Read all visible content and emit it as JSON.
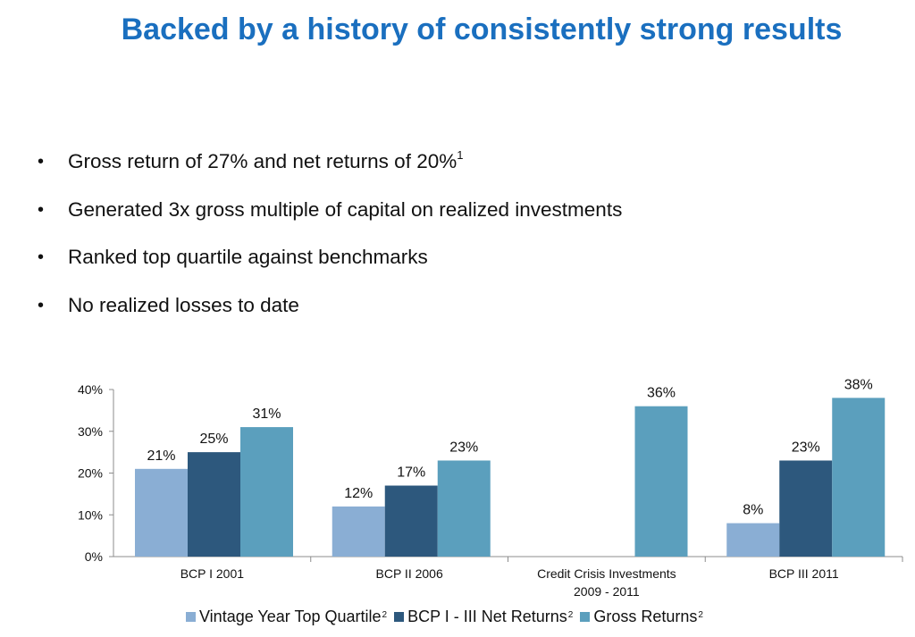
{
  "title": "Backed by a history of consistently strong results",
  "bullets": [
    {
      "text": "Gross return of 27% and net returns of 20%",
      "sup": "1"
    },
    {
      "text": "Generated 3x gross multiple of capital on realized investments",
      "sup": ""
    },
    {
      "text": "Ranked top quartile against benchmarks",
      "sup": ""
    },
    {
      "text": "No realized losses to date",
      "sup": ""
    }
  ],
  "bullet_symbol": "•",
  "chart_data": {
    "type": "bar",
    "categories": [
      [
        "BCP I 2001"
      ],
      [
        "BCP II 2006"
      ],
      [
        "Credit Crisis Investments",
        "2009 - 2011"
      ],
      [
        "BCP III 2011"
      ]
    ],
    "series": [
      {
        "name": "Vintage Year Top Quartile",
        "sup": "2",
        "color": "#8aaed4",
        "values": [
          21,
          12,
          null,
          8
        ]
      },
      {
        "name": "BCP I - III Net Returns",
        "sup": "2",
        "color": "#2d587d",
        "values": [
          25,
          17,
          null,
          23
        ]
      },
      {
        "name": "Gross Returns",
        "sup": "2",
        "color": "#5b9fbd",
        "values": [
          31,
          23,
          36,
          38
        ]
      }
    ],
    "data_labels": [
      [
        "21%",
        "12%",
        "",
        "8%"
      ],
      [
        "25%",
        "17%",
        "",
        "23%"
      ],
      [
        "31%",
        "23%",
        "36%",
        "38%"
      ]
    ],
    "yticks": [
      "0%",
      "10%",
      "20%",
      "30%",
      "40%"
    ],
    "ylim": [
      0,
      40
    ],
    "grid": false,
    "legend_position": "bottom"
  }
}
